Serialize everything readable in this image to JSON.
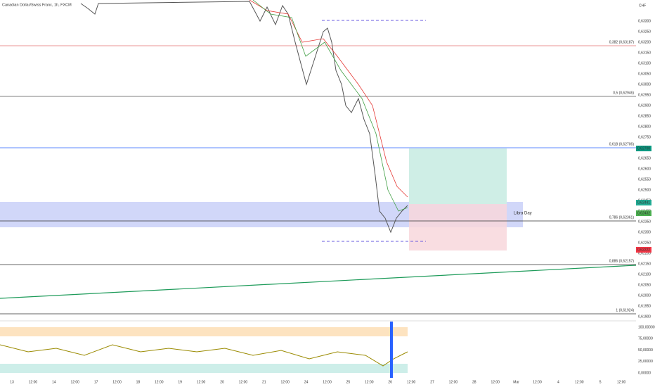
{
  "header": {
    "title": "Canadian Dollar/Swiss Franc, 1h, FXCM",
    "currency": "CHF"
  },
  "price_axis": [
    "0,63300",
    "0,63250",
    "0,63200",
    "0,63150",
    "0,63100",
    "0,63050",
    "0,63000",
    "0,62950",
    "0,62900",
    "0,62850",
    "0,62800",
    "0,62750",
    "0,62700",
    "0,62650",
    "0,62600",
    "0,62550",
    "0,62500",
    "0,62450",
    "0,62400",
    "0,62350",
    "0,62300",
    "0,62250",
    "0,62200",
    "0,62150",
    "0,62100",
    "0,62050",
    "0,62000",
    "0,61950",
    "0,61900"
  ],
  "fib_levels": [
    {
      "label": "0,382 (0,63187)",
      "color": "#e57373"
    },
    {
      "label": "0,5 (0,62946)",
      "color": "#555555"
    },
    {
      "label": "0,618 (0,62706)",
      "color": "#2962ff"
    },
    {
      "label": "0,786 (0,62361)",
      "color": "#333333"
    },
    {
      "label": "0,886 (0,62157)",
      "color": "#333333"
    },
    {
      "label": "1 (0,61924)",
      "color": "#333333"
    }
  ],
  "badges": [
    {
      "label": "0,62700",
      "color": "#089981"
    },
    {
      "label": "0,62441",
      "color": "#22ab94"
    },
    {
      "label": "0,62432",
      "color": "#4caf50"
    },
    {
      "label": "0,62222",
      "color": "#f23645"
    }
  ],
  "zone_label": "Libra Day",
  "oscillator_axis": [
    "100,00000",
    "75,00000",
    "50,00000",
    "25,00000",
    "0,00000"
  ],
  "time_axis": [
    "13",
    "12:00",
    "14",
    "12:00",
    "17",
    "12:00",
    "18",
    "12:00",
    "19",
    "12:00",
    "20",
    "12:00",
    "21",
    "12:00",
    "24",
    "12:00",
    "25",
    "12:00",
    "26",
    "12:00",
    "27",
    "12:00",
    "28",
    "12:00",
    "Mar",
    "12:00",
    "4",
    "12:00",
    "5",
    "12:00"
  ]
}
